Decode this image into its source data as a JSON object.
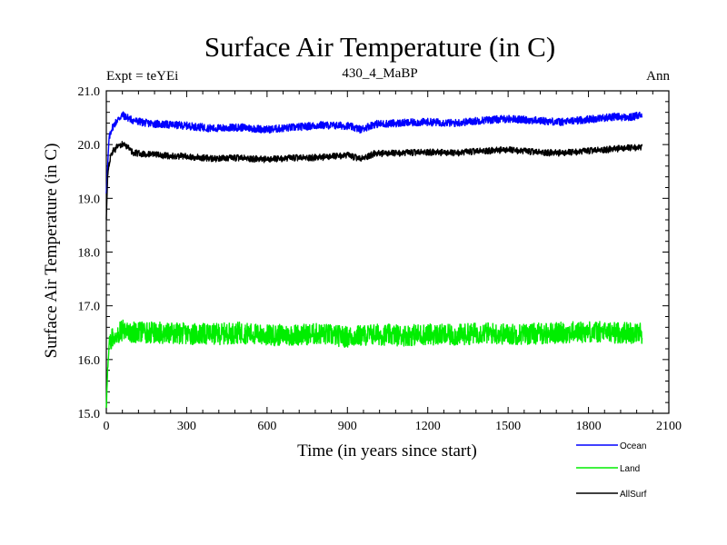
{
  "chart_data": {
    "type": "line",
    "title": "Surface Air Temperature (in C)",
    "subtitle": "430_4_MaBP",
    "left_label": "Expt = teYEi",
    "right_label": "Ann",
    "xlabel": "Time (in years since start)",
    "ylabel": "Surface Air Temperature (in C)",
    "xlim": [
      0,
      2100
    ],
    "ylim": [
      15.0,
      21.0
    ],
    "x_ticks": [
      0,
      300,
      600,
      900,
      1200,
      1500,
      1800,
      2100
    ],
    "x_tick_labels": [
      "0",
      "300",
      "600",
      "900",
      "1200",
      "1500",
      "1800",
      "2100"
    ],
    "y_ticks": [
      15.0,
      16.0,
      17.0,
      18.0,
      19.0,
      20.0,
      21.0
    ],
    "y_tick_labels": [
      "15.0",
      "16.0",
      "17.0",
      "18.0",
      "19.0",
      "20.0",
      "21.0"
    ],
    "legend_position": "bottom-right, outside plot",
    "series": [
      {
        "name": "Ocean",
        "color": "#0000ff",
        "x": [
          0,
          10,
          20,
          40,
          60,
          80,
          100,
          150,
          200,
          300,
          400,
          500,
          600,
          700,
          800,
          900,
          950,
          1000,
          1100,
          1200,
          1300,
          1400,
          1500,
          1600,
          1700,
          1800,
          1900,
          1950,
          2000
        ],
        "values": [
          19.1,
          20.1,
          20.3,
          20.45,
          20.55,
          20.5,
          20.45,
          20.4,
          20.38,
          20.35,
          20.3,
          20.32,
          20.28,
          20.32,
          20.36,
          20.35,
          20.28,
          20.38,
          20.4,
          20.42,
          20.4,
          20.45,
          20.48,
          20.45,
          20.42,
          20.47,
          20.52,
          20.5,
          20.55
        ],
        "noise_amplitude": 0.07
      },
      {
        "name": "Land",
        "color": "#00ee00",
        "x": [
          0,
          5,
          10,
          20,
          40,
          60,
          100,
          200,
          300,
          400,
          500,
          600,
          700,
          800,
          900,
          1000,
          1100,
          1200,
          1300,
          1400,
          1500,
          1600,
          1700,
          1800,
          1900,
          2000
        ],
        "values": [
          15.1,
          15.8,
          16.2,
          16.4,
          16.5,
          16.55,
          16.5,
          16.5,
          16.48,
          16.47,
          16.5,
          16.45,
          16.46,
          16.48,
          16.42,
          16.47,
          16.45,
          16.47,
          16.45,
          16.5,
          16.47,
          16.48,
          16.5,
          16.52,
          16.5,
          16.5
        ],
        "noise_amplitude": 0.2
      },
      {
        "name": "AllSurf",
        "color": "#000000",
        "x": [
          0,
          5,
          10,
          20,
          40,
          60,
          80,
          100,
          150,
          200,
          300,
          400,
          500,
          600,
          700,
          800,
          900,
          950,
          1000,
          1100,
          1200,
          1300,
          1400,
          1500,
          1600,
          1700,
          1800,
          1900,
          2000
        ],
        "values": [
          18.6,
          19.4,
          19.65,
          19.85,
          19.95,
          20.0,
          19.95,
          19.85,
          19.82,
          19.8,
          19.78,
          19.74,
          19.75,
          19.72,
          19.75,
          19.76,
          19.8,
          19.73,
          19.83,
          19.84,
          19.86,
          19.84,
          19.88,
          19.9,
          19.86,
          19.84,
          19.88,
          19.92,
          19.95
        ],
        "noise_amplitude": 0.06
      }
    ]
  }
}
